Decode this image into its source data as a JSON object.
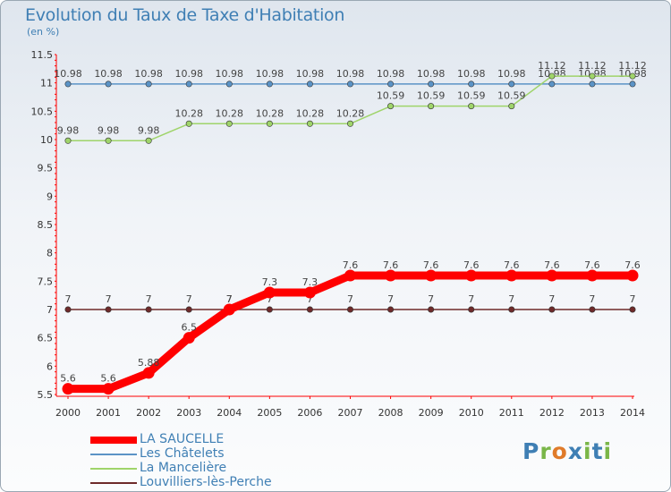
{
  "header": {
    "title": "Evolution du Taux de Taxe d'Habitation",
    "unit": "(en %)"
  },
  "brand": {
    "text": "Proxiti"
  },
  "chart_data": {
    "type": "line",
    "title": "Evolution du Taux de Taxe d'Habitation",
    "ylabel": "(en %)",
    "xlabel": "",
    "x": [
      2000,
      2001,
      2002,
      2003,
      2004,
      2005,
      2006,
      2007,
      2008,
      2009,
      2010,
      2011,
      2012,
      2013,
      2014
    ],
    "ylim": [
      5.5,
      11.5
    ],
    "yticks": [
      5.5,
      6,
      6.5,
      7,
      7.5,
      8,
      8.5,
      9,
      9.5,
      10,
      10.5,
      11,
      11.5
    ],
    "grid": false,
    "legend_position": "bottom-left",
    "series": [
      {
        "name": "LA SAUCELLE",
        "color": "#ff0000",
        "emphasis": true,
        "values": [
          5.6,
          5.6,
          5.88,
          6.5,
          7,
          7.3,
          7.3,
          7.6,
          7.6,
          7.6,
          7.6,
          7.6,
          7.6,
          7.6,
          7.6
        ],
        "labels": [
          "5.6",
          "5.6",
          "5.88",
          "6.5",
          "7",
          "7.3",
          "7.3",
          "7.6",
          "7.6",
          "7.6",
          "7.6",
          "7.6",
          "7.6",
          "7.6",
          "7.6"
        ]
      },
      {
        "name": "Les Châtelets",
        "color": "#5b93c6",
        "emphasis": false,
        "values": [
          10.98,
          10.98,
          10.98,
          10.98,
          10.98,
          10.98,
          10.98,
          10.98,
          10.98,
          10.98,
          10.98,
          10.98,
          10.98,
          10.98,
          10.98
        ],
        "labels": [
          "10.98",
          "10.98",
          "10.98",
          "10.98",
          "10.98",
          "10.98",
          "10.98",
          "10.98",
          "10.98",
          "10.98",
          "10.98",
          "10.98",
          "10.98",
          "10.98",
          "10.98"
        ]
      },
      {
        "name": "La Mancelière",
        "color": "#9fd46a",
        "emphasis": false,
        "values": [
          9.98,
          9.98,
          9.98,
          10.28,
          10.28,
          10.28,
          10.28,
          10.28,
          10.59,
          10.59,
          10.59,
          10.59,
          11.12,
          11.12,
          11.12
        ],
        "labels": [
          "9.98",
          "9.98",
          "9.98",
          "10.28",
          "10.28",
          "10.28",
          "10.28",
          "10.28",
          "10.59",
          "10.59",
          "10.59",
          "10.59",
          "11.12",
          "11.12",
          "11.12"
        ]
      },
      {
        "name": "Louvilliers-lès-Perche",
        "color": "#6e2a2a",
        "emphasis": false,
        "values": [
          7,
          7,
          7,
          7,
          7,
          7,
          7,
          7,
          7,
          7,
          7,
          7,
          7,
          7,
          7
        ],
        "labels": [
          "7",
          "7",
          "7",
          "7",
          "7",
          "7",
          "7",
          "7",
          "7",
          "7",
          "7",
          "7",
          "7",
          "7",
          "7"
        ]
      }
    ]
  }
}
